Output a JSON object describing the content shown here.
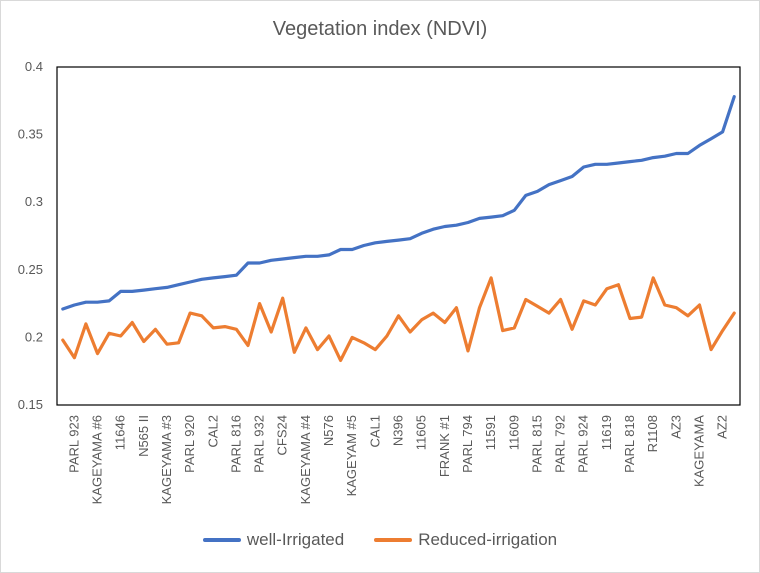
{
  "chart_data": {
    "type": "line",
    "title": "Vegetation index (NDVI)",
    "xlabel": "",
    "ylabel": "",
    "ylim": [
      0.15,
      0.4
    ],
    "yticks": [
      "0.15",
      "0.2",
      "0.25",
      "0.3",
      "0.35",
      "0.4"
    ],
    "ytick_values": [
      0.15,
      0.2,
      0.25,
      0.3,
      0.35,
      0.4
    ],
    "category_labels": [
      "PARL 923",
      "KAGEYAMA #6",
      "11646",
      "N565 II",
      "KAGEYAMA #3",
      "PARL 920",
      "CAL2",
      "PARL 816",
      "PARL 932",
      "CFS24",
      "KAGEYAMA #4",
      "N576",
      "KAGEYAM #5",
      "CAL1",
      "N396",
      "11605",
      "FRANK #1",
      "PARL 794",
      "11591",
      "11609",
      "PARL 815",
      "PARL 792",
      "PARL 924",
      "11619",
      "PARL 818",
      "R1108",
      "AZ3",
      "KAGEYAMA",
      "AZ2"
    ],
    "series": [
      {
        "name": "well-Irrigated",
        "color": "#4472c4",
        "values": [
          0.221,
          0.224,
          0.226,
          0.226,
          0.227,
          0.234,
          0.234,
          0.235,
          0.236,
          0.237,
          0.239,
          0.241,
          0.243,
          0.244,
          0.245,
          0.246,
          0.255,
          0.255,
          0.257,
          0.258,
          0.259,
          0.26,
          0.26,
          0.261,
          0.265,
          0.265,
          0.268,
          0.27,
          0.271,
          0.272,
          0.273,
          0.277,
          0.28,
          0.282,
          0.283,
          0.285,
          0.288,
          0.289,
          0.29,
          0.294,
          0.305,
          0.308,
          0.313,
          0.316,
          0.319,
          0.326,
          0.328,
          0.328,
          0.329,
          0.33,
          0.331,
          0.333,
          0.334,
          0.336,
          0.336,
          0.342,
          0.347,
          0.352,
          0.378
        ]
      },
      {
        "name": "Reduced-irrigation",
        "color": "#ed7d31",
        "values": [
          0.198,
          0.185,
          0.21,
          0.188,
          0.203,
          0.201,
          0.211,
          0.197,
          0.206,
          0.195,
          0.196,
          0.218,
          0.216,
          0.207,
          0.208,
          0.206,
          0.194,
          0.225,
          0.204,
          0.229,
          0.189,
          0.207,
          0.191,
          0.201,
          0.183,
          0.2,
          0.196,
          0.191,
          0.201,
          0.216,
          0.204,
          0.213,
          0.218,
          0.211,
          0.222,
          0.19,
          0.222,
          0.244,
          0.205,
          0.207,
          0.228,
          0.223,
          0.218,
          0.228,
          0.206,
          0.227,
          0.224,
          0.236,
          0.239,
          0.214,
          0.215,
          0.244,
          0.224,
          0.222,
          0.216,
          0.224,
          0.191,
          0.205,
          0.218
        ]
      }
    ],
    "legend_position": "bottom"
  }
}
